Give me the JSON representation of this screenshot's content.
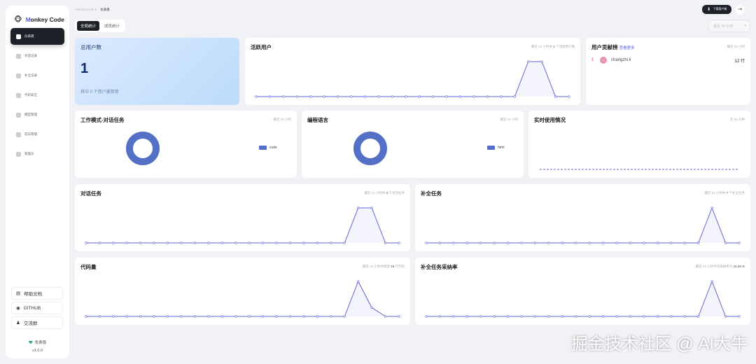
{
  "app": {
    "logo_m": "M",
    "logo_rest": "onkey Code",
    "accent": "#5b5fe3"
  },
  "sidebar": {
    "items": [
      {
        "label": "仪表盘",
        "active": true
      },
      {
        "label": "对话记录"
      },
      {
        "label": "补全记录"
      },
      {
        "label": "代码安全"
      },
      {
        "label": "模型管理"
      },
      {
        "label": "成员管理"
      },
      {
        "label": "管理员"
      }
    ],
    "links": [
      {
        "label": "帮助文档",
        "icon": "document-icon"
      },
      {
        "label": "GITHUB",
        "icon": "github-icon"
      },
      {
        "label": "交流群",
        "icon": "group-icon"
      }
    ],
    "plan": "免费版",
    "version": "v1.0.0"
  },
  "breadcrumb": {
    "root": "MonkeyCode",
    "current": "仪表盘"
  },
  "tabs": [
    {
      "label": "全局统计",
      "active": true
    },
    {
      "label": "成员统计"
    }
  ],
  "header": {
    "download": "下载客户端",
    "time_range": "最近 24 小时"
  },
  "total_users": {
    "title": "总用户数",
    "value": "1",
    "note": "其中 0 个用户被禁用"
  },
  "active_users": {
    "title": "活跃用户",
    "sub_pre": "最近 24 小时共",
    "sub_val": "1",
    "sub_post": "个活跃用户数"
  },
  "contrib": {
    "title": "用户贡献榜",
    "more": "查看更多",
    "sub": "最近 24 小时",
    "rows": [
      {
        "rank": "1",
        "avatar": "c",
        "name": "changzhi.li",
        "value": "12 行"
      }
    ]
  },
  "work_mode": {
    "title": "工作模式-对话任务",
    "sub": "最近 24 小时",
    "legend": "code"
  },
  "language": {
    "title": "编程语言",
    "sub": "最近 24 小时",
    "legend": "html"
  },
  "realtime": {
    "title": "实时使用情况",
    "sub": "近 60 分钟"
  },
  "chat_tasks": {
    "title": "对话任务",
    "sub_pre": "最近 24 小时共",
    "sub_val": "2",
    "sub_post": "个对话任务"
  },
  "completion_tasks": {
    "title": "补全任务",
    "sub_pre": "最近 24 小时共",
    "sub_val": "7",
    "sub_post": "个补全任务"
  },
  "code_lines": {
    "title": "代码量",
    "sub_pre": "最近 24 小时共修改",
    "sub_val": "15",
    "sub_post": "行代码"
  },
  "accept_rate": {
    "title": "补全任务采纳率",
    "sub_pre": "最近 24 小时平均采纳率为",
    "sub_val": "16.29 %",
    "sub_post": ""
  },
  "chart_data": [
    {
      "type": "line",
      "id": "active_users",
      "values": [
        0,
        0,
        0,
        0,
        0,
        0,
        0,
        0,
        0,
        0,
        0,
        0,
        0,
        0,
        0,
        0,
        0,
        0,
        0,
        0,
        1,
        1,
        0,
        0
      ]
    },
    {
      "type": "line",
      "id": "chat_tasks",
      "values": [
        0,
        0,
        0,
        0,
        0,
        0,
        0,
        0,
        0,
        0,
        0,
        0,
        0,
        0,
        0,
        0,
        0,
        0,
        0,
        0,
        1,
        1,
        0,
        0
      ]
    },
    {
      "type": "line",
      "id": "completion_tasks",
      "values": [
        0,
        0,
        0,
        0,
        0,
        0,
        0,
        0,
        0,
        0,
        0,
        0,
        0,
        0,
        0,
        0,
        0,
        0,
        0,
        0,
        0,
        7,
        0,
        0
      ]
    },
    {
      "type": "line",
      "id": "code_lines",
      "values": [
        0,
        0,
        0,
        0,
        0,
        0,
        0,
        0,
        0,
        0,
        0,
        0,
        0,
        0,
        0,
        0,
        0,
        0,
        0,
        0,
        12,
        3,
        0,
        0
      ]
    },
    {
      "type": "line",
      "id": "accept_rate",
      "values": [
        0,
        0,
        0,
        0,
        0,
        0,
        0,
        0,
        0,
        0,
        0,
        0,
        0,
        0,
        0,
        0,
        0,
        0,
        0,
        0,
        0,
        16.29,
        0,
        0
      ]
    },
    {
      "type": "line",
      "id": "realtime",
      "values": [
        0,
        0,
        0,
        0,
        0,
        0,
        0,
        0,
        0,
        0
      ],
      "dashed": true
    },
    {
      "type": "pie",
      "id": "work_mode",
      "categories": [
        "code"
      ],
      "values": [
        100
      ]
    },
    {
      "type": "pie",
      "id": "language",
      "categories": [
        "html"
      ],
      "values": [
        100
      ]
    }
  ],
  "watermark": "掘金技术社区 @ AI大牛"
}
